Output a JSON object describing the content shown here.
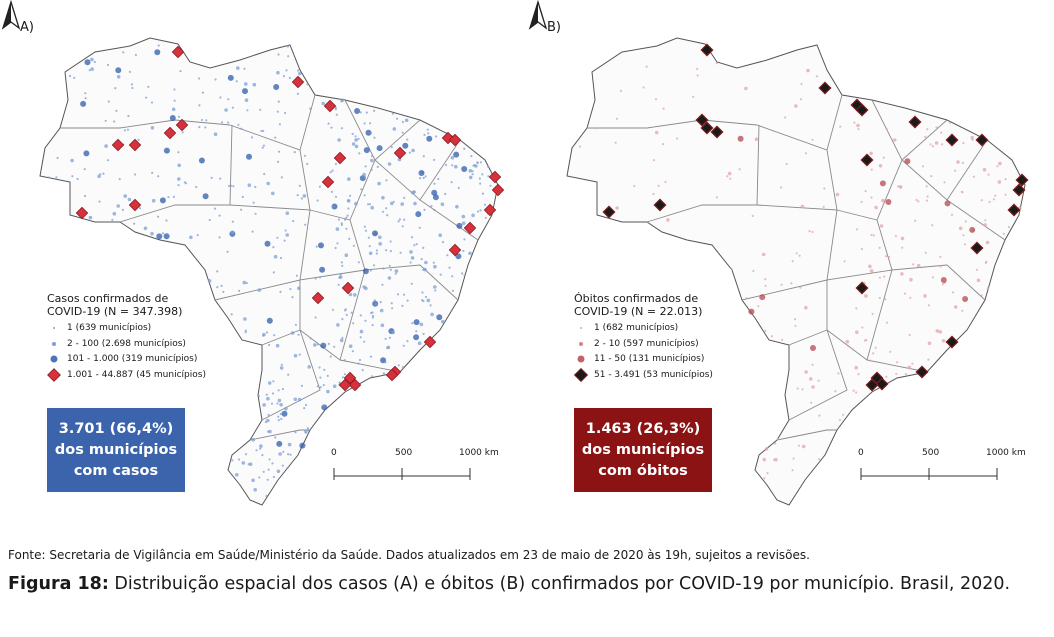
{
  "panels": [
    {
      "letter": "A)",
      "legend_title_line1": "Casos confirmados de",
      "legend_title_line2": "COVID-19 (N = 347.398)",
      "legend_items": [
        "1 (639 municípios)",
        "2 - 100 (2.698 municípios)",
        "101 - 1.000 (319 municípios)",
        "1.001 - 44.887 (45 municípios)"
      ],
      "summary_line1": "3.701 (66,4%)",
      "summary_line2": "dos municípios",
      "summary_line3": "com casos",
      "colors": {
        "dot": "#2f5cab",
        "dot_light": "#7c9fd4",
        "marker": "#d7323c",
        "box": "#3b64ad"
      }
    },
    {
      "letter": "B)",
      "legend_title_line1": "Óbitos confirmados de",
      "legend_title_line2": "COVID-19 (N = 22.013)",
      "legend_items": [
        "1 (682 municípios)",
        "2 - 10 (597 municípios)",
        "11 - 50 (131 municípios)",
        "51 - 3.491 (53 municípios)"
      ],
      "summary_line1": "1.463 (26,3%)",
      "summary_line2": "dos municípios",
      "summary_line3": "com óbitos",
      "colors": {
        "dot": "#b6474f",
        "dot_light": "#e3a5a9",
        "marker": "#1a1a1a",
        "box": "#8b1314"
      }
    }
  ],
  "scale_labels": [
    "0",
    "500",
    "1000 km"
  ],
  "north_arrow_icon": "north-arrow-icon",
  "source": "Fonte: Secretaria de Vigilância em Saúde/Ministério da Saúde. Dados atualizados em 23 de maio de 2020 às 19h, sujeitos a revisões.",
  "caption_label": "Figura 18:",
  "caption_text": " Distribuição espacial dos casos (A) e óbitos (B) confirmados por COVID-19 por município. Brasil, 2020."
}
